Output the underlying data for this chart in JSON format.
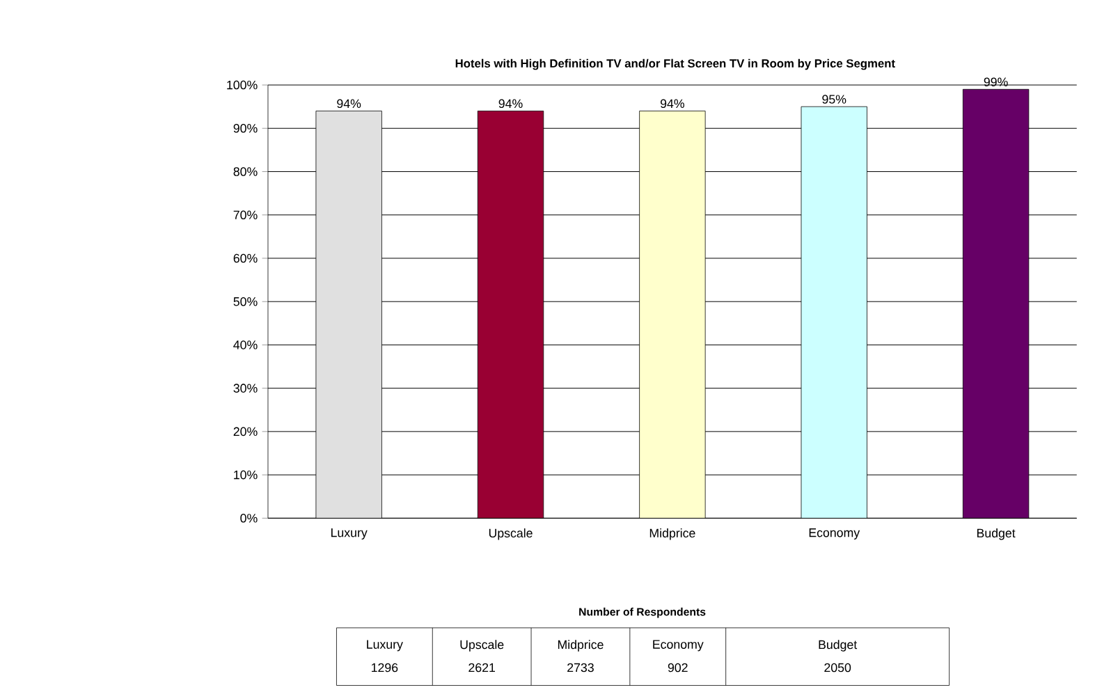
{
  "chart_data": {
    "type": "bar",
    "title": "Hotels with High Definition TV and/or Flat Screen TV in Room by Price Segment",
    "categories": [
      "Luxury",
      "Upscale",
      "Midprice",
      "Economy",
      "Budget"
    ],
    "values": [
      94,
      94,
      94,
      95,
      99
    ],
    "value_labels": [
      "94%",
      "94%",
      "94%",
      "95%",
      "99%"
    ],
    "colors": [
      "#e0e0e0",
      "#990033",
      "#ffffcc",
      "#ccffff",
      "#660066"
    ],
    "ylim": [
      0,
      100
    ],
    "yticks": [
      {
        "value": 0,
        "label": "0%"
      },
      {
        "value": 10,
        "label": "10%"
      },
      {
        "value": 20,
        "label": "20%"
      },
      {
        "value": 30,
        "label": "30%"
      },
      {
        "value": 40,
        "label": "40%"
      },
      {
        "value": 50,
        "label": "50%"
      },
      {
        "value": 60,
        "label": "60%"
      },
      {
        "value": 70,
        "label": "70%"
      },
      {
        "value": 80,
        "label": "80%"
      },
      {
        "value": 90,
        "label": "90%"
      },
      {
        "value": 100,
        "label": "100%"
      }
    ],
    "grid": "y",
    "annotations": [
      "Number of Respondents",
      "1296",
      "2621",
      "2733",
      "902",
      "2050"
    ]
  }
}
